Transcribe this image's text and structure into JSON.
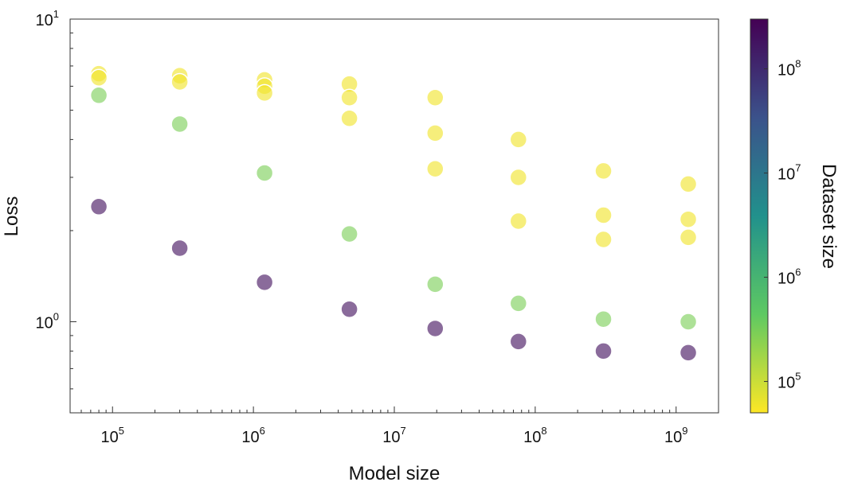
{
  "chart_data": {
    "type": "scatter",
    "title": "",
    "xlabel": "Model size",
    "ylabel": "Loss",
    "x_scale": "log",
    "y_scale": "log",
    "xlim": [
      50000,
      2000000000
    ],
    "ylim": [
      0.5,
      10
    ],
    "grid": false,
    "legend": "none",
    "x_ticks": [
      {
        "base": "10",
        "exp": "5",
        "value": 100000
      },
      {
        "base": "10",
        "exp": "6",
        "value": 1000000
      },
      {
        "base": "10",
        "exp": "7",
        "value": 10000000
      },
      {
        "base": "10",
        "exp": "8",
        "value": 100000000
      },
      {
        "base": "10",
        "exp": "9",
        "value": 1000000000
      }
    ],
    "y_ticks": [
      {
        "base": "10",
        "exp": "0",
        "value": 1
      },
      {
        "base": "10",
        "exp": "1",
        "value": 10
      }
    ],
    "colorbar": {
      "label": "Dataset size",
      "scale": "log",
      "range": [
        50000,
        300000000
      ],
      "colormap": "viridis",
      "ticks": [
        {
          "base": "10",
          "exp": "5",
          "value": 100000
        },
        {
          "base": "10",
          "exp": "6",
          "value": 1000000
        },
        {
          "base": "10",
          "exp": "7",
          "value": 10000000
        },
        {
          "base": "10",
          "exp": "8",
          "value": 100000000
        }
      ]
    },
    "points": [
      {
        "x": 80000,
        "y": 6.6,
        "dataset_size": 60000
      },
      {
        "x": 80000,
        "y": 6.4,
        "dataset_size": 60000
      },
      {
        "x": 80000,
        "y": 5.6,
        "dataset_size": 300000
      },
      {
        "x": 80000,
        "y": 2.4,
        "dataset_size": 200000000
      },
      {
        "x": 300000,
        "y": 6.5,
        "dataset_size": 60000
      },
      {
        "x": 300000,
        "y": 6.2,
        "dataset_size": 60000
      },
      {
        "x": 300000,
        "y": 4.5,
        "dataset_size": 300000
      },
      {
        "x": 300000,
        "y": 1.75,
        "dataset_size": 200000000
      },
      {
        "x": 1200000,
        "y": 6.3,
        "dataset_size": 60000
      },
      {
        "x": 1200000,
        "y": 6.0,
        "dataset_size": 60000
      },
      {
        "x": 1200000,
        "y": 5.7,
        "dataset_size": 60000
      },
      {
        "x": 1200000,
        "y": 3.1,
        "dataset_size": 300000
      },
      {
        "x": 1200000,
        "y": 1.35,
        "dataset_size": 200000000
      },
      {
        "x": 4800000,
        "y": 6.1,
        "dataset_size": 60000
      },
      {
        "x": 4800000,
        "y": 5.5,
        "dataset_size": 60000
      },
      {
        "x": 4800000,
        "y": 4.7,
        "dataset_size": 60000
      },
      {
        "x": 4800000,
        "y": 1.95,
        "dataset_size": 300000
      },
      {
        "x": 4800000,
        "y": 1.1,
        "dataset_size": 200000000
      },
      {
        "x": 19500000,
        "y": 5.5,
        "dataset_size": 60000
      },
      {
        "x": 19500000,
        "y": 4.2,
        "dataset_size": 60000
      },
      {
        "x": 19500000,
        "y": 3.2,
        "dataset_size": 60000
      },
      {
        "x": 19500000,
        "y": 1.33,
        "dataset_size": 300000
      },
      {
        "x": 19500000,
        "y": 0.95,
        "dataset_size": 200000000
      },
      {
        "x": 76000000,
        "y": 4.0,
        "dataset_size": 60000
      },
      {
        "x": 76000000,
        "y": 3.0,
        "dataset_size": 60000
      },
      {
        "x": 76000000,
        "y": 2.15,
        "dataset_size": 60000
      },
      {
        "x": 76000000,
        "y": 1.15,
        "dataset_size": 300000
      },
      {
        "x": 76000000,
        "y": 0.86,
        "dataset_size": 200000000
      },
      {
        "x": 305000000,
        "y": 3.15,
        "dataset_size": 60000
      },
      {
        "x": 305000000,
        "y": 2.25,
        "dataset_size": 60000
      },
      {
        "x": 305000000,
        "y": 1.87,
        "dataset_size": 60000
      },
      {
        "x": 305000000,
        "y": 1.02,
        "dataset_size": 300000
      },
      {
        "x": 305000000,
        "y": 0.8,
        "dataset_size": 200000000
      },
      {
        "x": 1220000000,
        "y": 2.85,
        "dataset_size": 60000
      },
      {
        "x": 1220000000,
        "y": 2.18,
        "dataset_size": 60000
      },
      {
        "x": 1220000000,
        "y": 1.9,
        "dataset_size": 60000
      },
      {
        "x": 1220000000,
        "y": 1.0,
        "dataset_size": 300000
      },
      {
        "x": 1220000000,
        "y": 0.79,
        "dataset_size": 200000000
      }
    ]
  }
}
